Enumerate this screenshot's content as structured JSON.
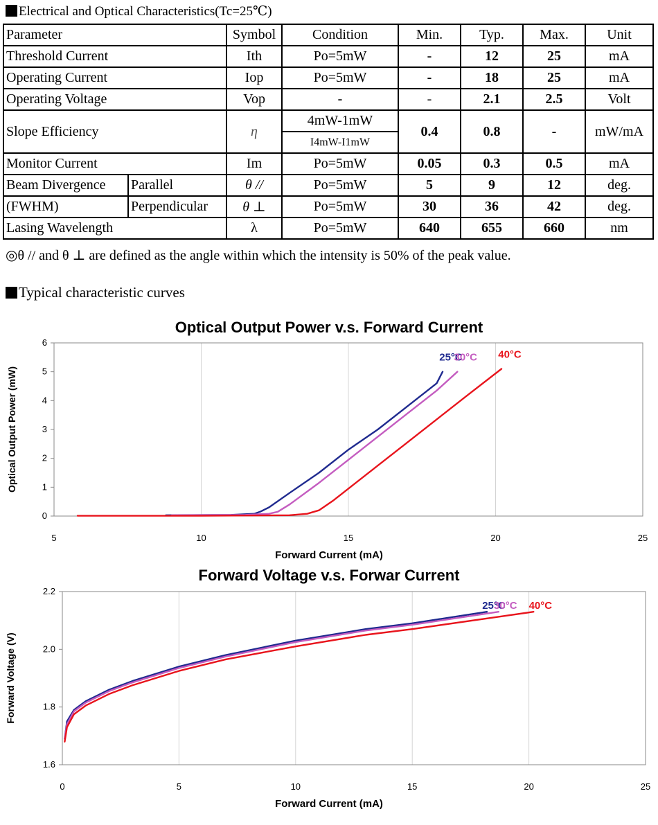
{
  "sections": {
    "characteristics_title": "Electrical and Optical Characteristics(Tc=25℃)",
    "curves_title": "Typical characteristic curves"
  },
  "table": {
    "headers": [
      "Parameter",
      "Symbol",
      "Condition",
      "Min.",
      "Typ.",
      "Max.",
      "Unit"
    ],
    "rows": {
      "threshold": {
        "param": "Threshold Current",
        "symbol": "Ith",
        "condition": "Po=5mW",
        "min": "-",
        "typ": "12",
        "max": "25",
        "unit": "mA"
      },
      "operating_current": {
        "param": "Operating Current",
        "symbol": "Iop",
        "condition": "Po=5mW",
        "min": "-",
        "typ": "18",
        "max": "25",
        "unit": "mA"
      },
      "operating_voltage": {
        "param": "Operating Voltage",
        "symbol": "Vop",
        "condition": "-",
        "min": "-",
        "typ": "2.1",
        "max": "2.5",
        "unit": "Volt"
      },
      "slope": {
        "param": "Slope Efficiency",
        "symbol": "η",
        "condition_top": "4mW-1mW",
        "condition_bottom": "I4mW-I1mW",
        "min": "0.4",
        "typ": "0.8",
        "max": "-",
        "unit": "mW/mA"
      },
      "monitor": {
        "param": "Monitor Current",
        "symbol": "Im",
        "condition": "Po=5mW",
        "min": "0.05",
        "typ": "0.3",
        "max": "0.5",
        "unit": "mA"
      },
      "beam_parallel": {
        "param": "Beam Divergence",
        "sub": "Parallel",
        "symbol": "θ //",
        "condition": "Po=5mW",
        "min": "5",
        "typ": "9",
        "max": "12",
        "unit": "deg."
      },
      "beam_perpendicular": {
        "param": "(FWHM)",
        "sub": "Perpendicular",
        "symbol": "θ ⊥",
        "condition": "Po=5mW",
        "min": "30",
        "typ": "36",
        "max": "42",
        "unit": "deg."
      },
      "wavelength": {
        "param": "Lasing Wavelength",
        "symbol": "λ",
        "condition": "Po=5mW",
        "min": "640",
        "typ": "655",
        "max": "660",
        "unit": "nm"
      }
    }
  },
  "note": "◎θ // and θ ⊥ are defined as the angle within which the intensity is 50% of the peak value.",
  "chart_data": [
    {
      "type": "line",
      "title": "Optical Output Power v.s. Forward Current",
      "xlabel": "Forward Current (mA)",
      "ylabel": "Optical Output Power (mW)",
      "xlim": [
        5,
        25
      ],
      "ylim": [
        0,
        6
      ],
      "xticks": [
        "5",
        "10",
        "15",
        "20",
        "25"
      ],
      "yticks": [
        "0",
        "1",
        "2",
        "3",
        "4",
        "5",
        "6"
      ],
      "grid": "vertical",
      "colors": {
        "25": "#1f2a8f",
        "30": "#c45cc0",
        "40": "#e8141c"
      },
      "series": [
        {
          "name": "25°C",
          "x": [
            8.8,
            11.0,
            11.8,
            12.0,
            12.3,
            13.0,
            14.0,
            15.0,
            16.0,
            17.0,
            18.0,
            18.2
          ],
          "y": [
            0.03,
            0.04,
            0.08,
            0.15,
            0.3,
            0.8,
            1.5,
            2.3,
            3.0,
            3.8,
            4.6,
            5.0
          ]
        },
        {
          "name": "30°C",
          "x": [
            9.0,
            11.5,
            12.3,
            12.6,
            13.0,
            14.0,
            15.0,
            16.0,
            17.0,
            18.0,
            18.7
          ],
          "y": [
            0.03,
            0.04,
            0.08,
            0.15,
            0.4,
            1.15,
            1.95,
            2.75,
            3.55,
            4.35,
            5.0
          ]
        },
        {
          "name": "40°C",
          "x": [
            5.8,
            10.0,
            13.0,
            13.6,
            14.0,
            14.5,
            15.0,
            16.0,
            17.0,
            18.0,
            19.0,
            20.2
          ],
          "y": [
            0.01,
            0.01,
            0.03,
            0.08,
            0.2,
            0.55,
            0.95,
            1.75,
            2.55,
            3.35,
            4.15,
            5.1
          ]
        }
      ]
    },
    {
      "type": "line",
      "title": "Forward Voltage v.s. Forwar Current",
      "xlabel": "Forward Current (mA)",
      "ylabel": "Forward Voltage (V)",
      "xlim": [
        0,
        25
      ],
      "ylim": [
        1.6,
        2.2
      ],
      "xticks": [
        "0",
        "5",
        "10",
        "15",
        "20",
        "25"
      ],
      "yticks": [
        "1.6",
        "1.8",
        "2.0",
        "2.2"
      ],
      "grid": "vertical",
      "colors": {
        "25": "#1f2a8f",
        "30": "#c45cc0",
        "40": "#e8141c"
      },
      "series": [
        {
          "name": "25°C",
          "x": [
            0.1,
            0.2,
            0.5,
            1,
            2,
            3,
            5,
            7,
            10,
            13,
            15,
            18.2
          ],
          "y": [
            1.69,
            1.75,
            1.79,
            1.82,
            1.86,
            1.89,
            1.94,
            1.98,
            2.03,
            2.07,
            2.09,
            2.13
          ]
        },
        {
          "name": "30°C",
          "x": [
            0.1,
            0.2,
            0.5,
            1,
            2,
            3,
            5,
            7,
            10,
            13,
            15,
            18.7
          ],
          "y": [
            1.69,
            1.74,
            1.785,
            1.815,
            1.855,
            1.885,
            1.935,
            1.975,
            2.025,
            2.065,
            2.085,
            2.13
          ]
        },
        {
          "name": "40°C",
          "x": [
            0.1,
            0.2,
            0.5,
            1,
            2,
            3,
            5,
            7,
            10,
            13,
            15,
            20.2
          ],
          "y": [
            1.68,
            1.73,
            1.775,
            1.805,
            1.845,
            1.875,
            1.925,
            1.965,
            2.01,
            2.05,
            2.07,
            2.13
          ]
        }
      ]
    }
  ]
}
